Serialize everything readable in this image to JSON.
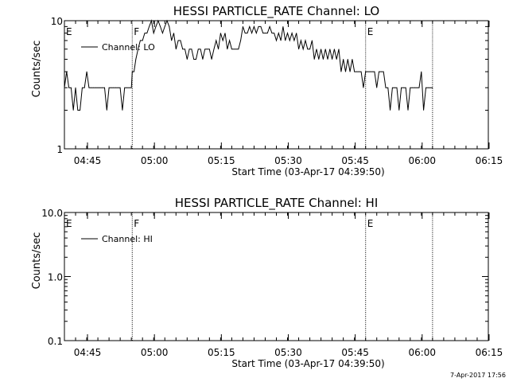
{
  "footer_timestamp": "7-Apr-2017 17:56",
  "colors": {
    "background": "#ffffff",
    "foreground": "#000000"
  },
  "chart_data": [
    {
      "type": "line",
      "title": "HESSI PARTICLE_RATE Channel: LO",
      "xlabel": "Start Time (03-Apr-17 04:39:50)",
      "ylabel": "Counts/sec",
      "yscale": "log",
      "ylim": [
        1,
        10
      ],
      "ytick_labels": [
        "1",
        "10"
      ],
      "xlim_minutes": [
        0,
        95
      ],
      "xtick_labels": [
        "04:45",
        "05:00",
        "05:15",
        "05:30",
        "05:45",
        "06:00",
        "06:15"
      ],
      "xtick_minutes": [
        5.17,
        20.17,
        35.17,
        50.17,
        65.17,
        80.17,
        95.17
      ],
      "legend": {
        "label": "Channel: LO",
        "position": "top-left"
      },
      "markers": [
        {
          "label": "E",
          "minute": 0,
          "style": "none"
        },
        {
          "label": "F",
          "minute": 15.2,
          "style": "dotted"
        },
        {
          "label": "E",
          "minute": 67.5,
          "style": "dotted"
        },
        {
          "label": "",
          "minute": 82.5,
          "style": "dotted"
        }
      ],
      "series": [
        {
          "name": "Channel: LO",
          "x": [
            0,
            0.5,
            1,
            1.5,
            2,
            2.5,
            3,
            3.5,
            4,
            4.5,
            5,
            5.5,
            6,
            6.5,
            7,
            7.5,
            8,
            8.5,
            9,
            9.5,
            10,
            10.5,
            11,
            11.5,
            12,
            12.5,
            13,
            13.5,
            14,
            14.5,
            15,
            15.2,
            15.6,
            16,
            16.5,
            17,
            17.5,
            18,
            18.5,
            19,
            19.5,
            20,
            20.5,
            21,
            21.5,
            22,
            22.5,
            23,
            23.5,
            24,
            24.5,
            25,
            25.5,
            26,
            26.5,
            27,
            27.5,
            28,
            28.5,
            29,
            29.5,
            30,
            30.5,
            31,
            31.5,
            32,
            32.5,
            33,
            33.5,
            34,
            34.5,
            35,
            35.5,
            36,
            36.5,
            37,
            37.5,
            38,
            38.5,
            39,
            39.5,
            40,
            40.5,
            41,
            41.5,
            42,
            42.5,
            43,
            43.5,
            44,
            44.5,
            45,
            45.5,
            46,
            46.5,
            47,
            47.5,
            48,
            48.5,
            49,
            49.5,
            50,
            50.5,
            51,
            51.5,
            52,
            52.5,
            53,
            53.5,
            54,
            54.5,
            55,
            55.5,
            56,
            56.5,
            57,
            57.5,
            58,
            58.5,
            59,
            59.5,
            60,
            60.5,
            61,
            61.5,
            62,
            62.5,
            63,
            63.5,
            64,
            64.5,
            65,
            65.5,
            66,
            66.5,
            67,
            67.5,
            68,
            68.5,
            69,
            69.5,
            70,
            70.5,
            71,
            71.5,
            72,
            72.5,
            73,
            73.5,
            74,
            74.5,
            75,
            75.5,
            76,
            76.5,
            77,
            77.5,
            78,
            78.5,
            79,
            79.5,
            80,
            80.5,
            81,
            81.5,
            82,
            82.5
          ],
          "y": [
            3,
            4,
            3,
            3,
            2,
            3,
            2,
            2,
            3,
            3,
            4,
            3,
            3,
            3,
            3,
            3,
            3,
            3,
            3,
            2,
            3,
            3,
            3,
            3,
            3,
            3,
            2,
            3,
            3,
            3,
            3,
            4,
            4,
            5,
            6,
            7,
            7,
            8,
            8,
            9,
            10,
            8,
            9,
            10,
            9,
            8,
            9,
            10,
            9,
            7,
            8,
            6,
            7,
            7,
            6,
            6,
            5,
            6,
            6,
            5,
            5,
            6,
            6,
            5,
            6,
            6,
            6,
            5,
            6,
            7,
            6,
            8,
            7,
            8,
            6,
            7,
            6,
            6,
            6,
            6,
            7,
            9,
            8,
            8,
            9,
            8,
            9,
            8,
            9,
            9,
            8,
            8,
            8,
            9,
            8,
            8,
            7,
            8,
            7,
            9,
            7,
            8,
            7,
            8,
            7,
            8,
            6,
            7,
            6,
            7,
            6,
            6,
            7,
            5,
            6,
            5,
            6,
            5,
            6,
            5,
            6,
            5,
            6,
            5,
            6,
            4,
            5,
            4,
            5,
            4,
            5,
            4,
            4,
            4,
            4,
            3,
            4,
            4,
            4,
            4,
            4,
            3,
            4,
            4,
            4,
            3,
            3,
            2,
            3,
            3,
            3,
            2,
            3,
            3,
            3,
            2,
            3,
            3,
            3,
            3,
            3,
            4,
            2,
            3,
            3,
            3,
            3
          ]
        }
      ]
    },
    {
      "type": "line",
      "title": "HESSI PARTICLE_RATE Channel: HI",
      "xlabel": "Start Time (03-Apr-17 04:39:50)",
      "ylabel": "Counts/sec",
      "yscale": "log",
      "ylim": [
        0.1,
        10
      ],
      "ytick_labels": [
        "0.1",
        "1.0",
        "10.0"
      ],
      "xlim_minutes": [
        0,
        95
      ],
      "xtick_labels": [
        "04:45",
        "05:00",
        "05:15",
        "05:30",
        "05:45",
        "06:00",
        "06:15"
      ],
      "xtick_minutes": [
        5.17,
        20.17,
        35.17,
        50.17,
        65.17,
        80.17,
        95.17
      ],
      "legend": {
        "label": "Channel: HI",
        "position": "top-left"
      },
      "markers": [
        {
          "label": "E",
          "minute": 0,
          "style": "none"
        },
        {
          "label": "F",
          "minute": 15.2,
          "style": "dotted"
        },
        {
          "label": "E",
          "minute": 67.5,
          "style": "dotted"
        },
        {
          "label": "",
          "minute": 82.5,
          "style": "dotted"
        }
      ],
      "series": [
        {
          "name": "Channel: HI",
          "x": [],
          "y": []
        }
      ]
    }
  ]
}
